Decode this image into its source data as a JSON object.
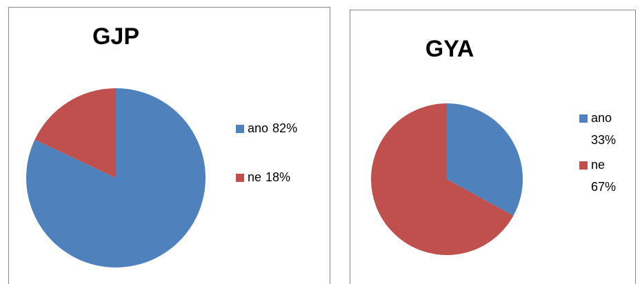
{
  "chart_data": [
    {
      "type": "pie",
      "title": "GJP",
      "categories": [
        "ano",
        "ne"
      ],
      "values": [
        82,
        18
      ],
      "value_labels": [
        "82%",
        "18%"
      ],
      "colors": [
        "#4f81bd",
        "#c0504d"
      ]
    },
    {
      "type": "pie",
      "title": "GYA",
      "categories": [
        "ano",
        "ne"
      ],
      "values": [
        33,
        67
      ],
      "value_labels": [
        "33%",
        "67%"
      ],
      "colors": [
        "#4f81bd",
        "#c0504d"
      ]
    }
  ]
}
